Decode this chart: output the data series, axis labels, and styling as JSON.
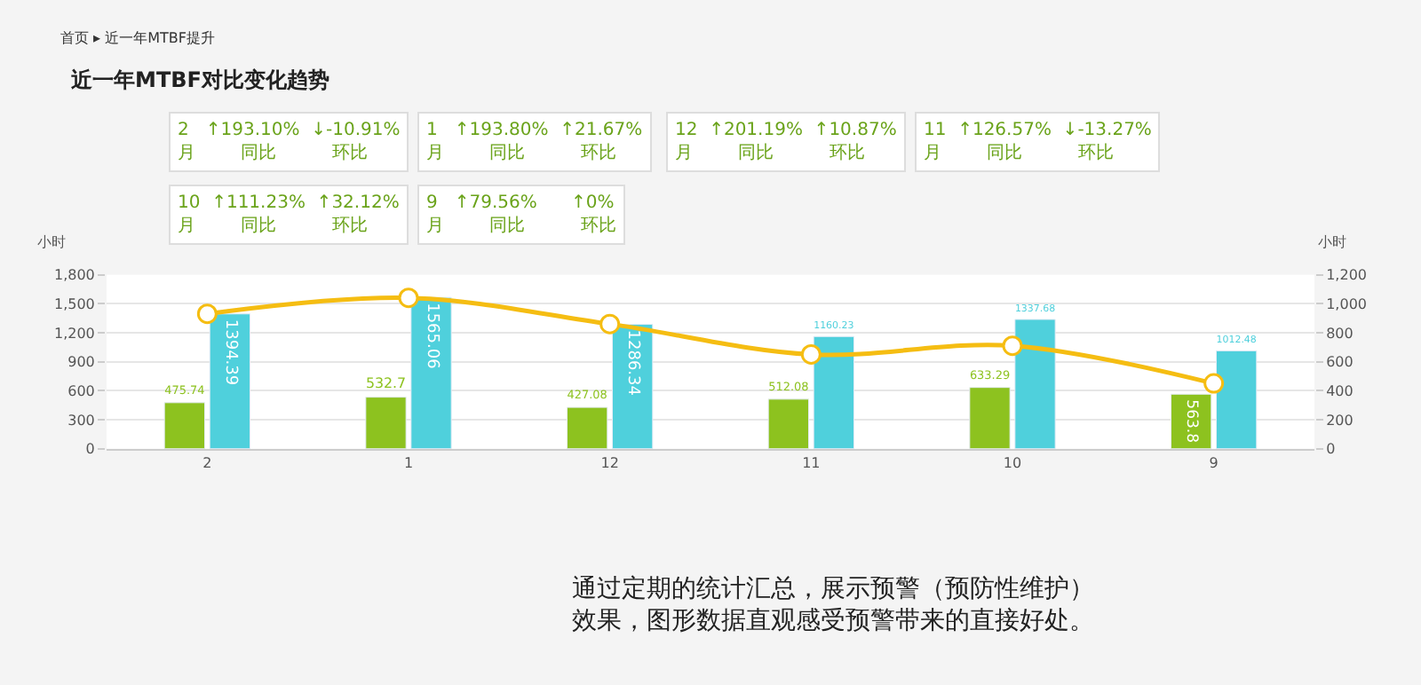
{
  "chart_data": {
    "type": "bar",
    "title": "近一年MTBF对比变化趋势",
    "categories": [
      "2",
      "1",
      "12",
      "11",
      "10",
      "9"
    ],
    "series": [
      {
        "color": "#8dc21f",
        "values": [
          475.74,
          532.7,
          427.08,
          512.08,
          633.29,
          563.8
        ],
        "value_labels": [
          "475.74",
          "532.7",
          "427.08",
          "512.08",
          "633.29",
          "563.8"
        ]
      },
      {
        "color": "#4fd0dc",
        "values": [
          1394.39,
          1565.06,
          1286.34,
          1160.23,
          1337.68,
          1012.48
        ],
        "value_labels": [
          "1394.39",
          "1565.06",
          "1286.34",
          "1160.23",
          "1337.68",
          "1012.48"
        ]
      },
      {
        "type": "line",
        "axis": "y2",
        "color": "#f5bd12",
        "marker": "circle",
        "values": [
          930,
          1040,
          860,
          650,
          710,
          450
        ]
      }
    ],
    "ylabel": "小时",
    "y2label": "小时",
    "ylim": [
      0,
      1800
    ],
    "yticks": [
      {
        "value": 0,
        "label": "0"
      },
      {
        "value": 300,
        "label": "300"
      },
      {
        "value": 600,
        "label": "600"
      },
      {
        "value": 900,
        "label": "900"
      },
      {
        "value": 1200,
        "label": "1,200"
      },
      {
        "value": 1500,
        "label": "1,500"
      },
      {
        "value": 1800,
        "label": "1,800"
      }
    ],
    "y2lim": [
      0,
      1200
    ],
    "y2ticks": [
      {
        "value": 0,
        "label": "0"
      },
      {
        "value": 200,
        "label": "200"
      },
      {
        "value": 400,
        "label": "400"
      },
      {
        "value": 600,
        "label": "600"
      },
      {
        "value": 800,
        "label": "800"
      },
      {
        "value": 1000,
        "label": "1,000"
      },
      {
        "value": 1200,
        "label": "1,200"
      }
    ],
    "grid": "y",
    "legend": false,
    "annotations": [
      "首页 ▸ 近一年MTBF提升",
      "2   ↑193.10%  ↓-10.91%\n月        同比          环比",
      "1   ↑193.80%  ↑21.67%\n月        同比          环比",
      "12  ↑201.19%  ↑10.87%\n月        同比          环比",
      "11  ↑126.57%  ↓-13.27%\n月        同比          环比",
      "10  ↑111.23%  ↑32.12%\n月        同比          环比",
      "9   ↑79.56%      ↑0%\n月        同比          环比",
      "通过定期的统计汇总，展示预警（预防性维护）",
      "效果，图形数据直观感受预警带来的直接好处。"
    ]
  }
}
